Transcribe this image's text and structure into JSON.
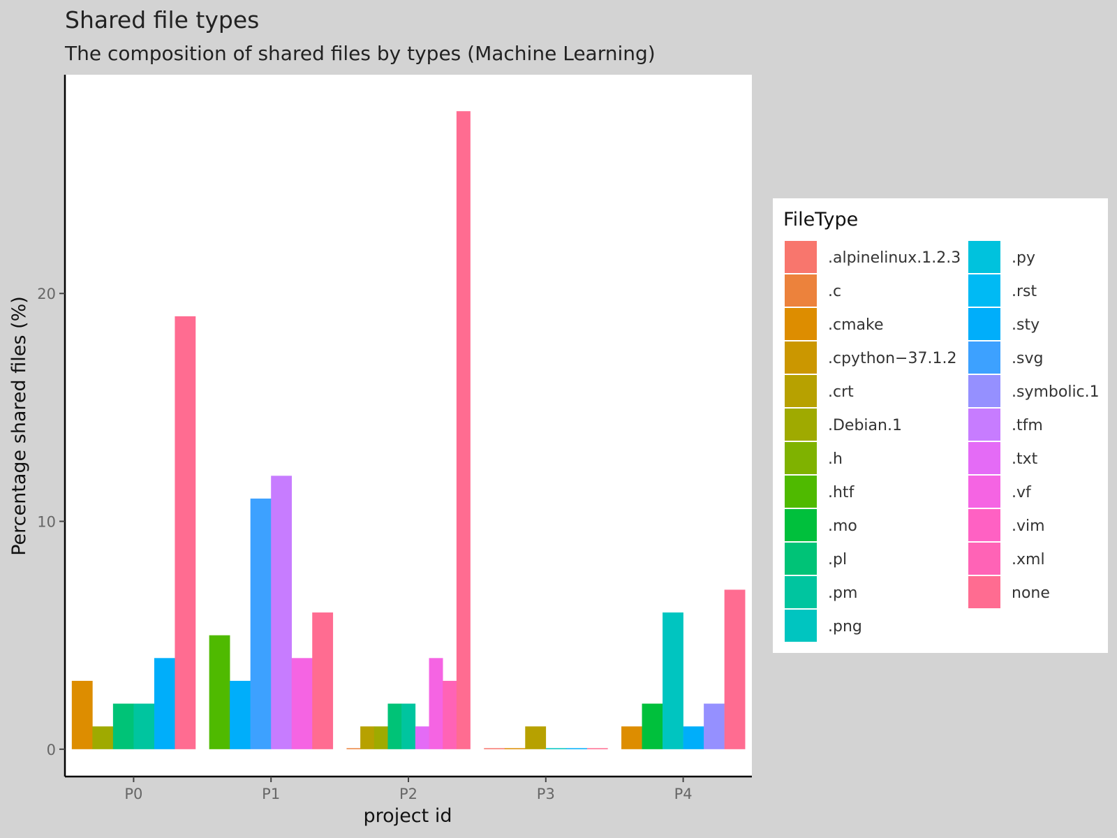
{
  "chart_data": {
    "type": "bar",
    "title": "Shared file types",
    "subtitle": "The composition of shared files by types (Machine Learning)",
    "xlabel": "project id",
    "ylabel": "Percentage shared files (%)",
    "categories": [
      "P0",
      "P1",
      "P2",
      "P3",
      "P4"
    ],
    "yticks": [
      0,
      10,
      20
    ],
    "ylim": [
      -1.2,
      29.6
    ],
    "grid": false,
    "legend": {
      "title": "FileType",
      "placement": "right",
      "columns": 2
    },
    "file_types": [
      {
        "name": ".alpinelinux.1.2.3",
        "color": "#F8766D"
      },
      {
        "name": ".c",
        "color": "#EC823C"
      },
      {
        "name": ".cmake",
        "color": "#DD8D00"
      },
      {
        "name": ".cpython−37.1.2",
        "color": "#CB9700"
      },
      {
        "name": ".crt",
        "color": "#B7A100"
      },
      {
        "name": ".Debian.1",
        "color": "#9FAA00"
      },
      {
        "name": ".h",
        "color": "#7FB200"
      },
      {
        "name": ".htf",
        "color": "#4FBA00"
      },
      {
        "name": ".mo",
        "color": "#00C03C"
      },
      {
        "name": ".pl",
        "color": "#00C377"
      },
      {
        "name": ".pm",
        "color": "#00C59F"
      },
      {
        "name": ".png",
        "color": "#00C5C0"
      },
      {
        "name": ".py",
        "color": "#00C2DD"
      },
      {
        "name": ".rst",
        "color": "#00BAF4"
      },
      {
        "name": ".sty",
        "color": "#00AEFA"
      },
      {
        "name": ".svg",
        "color": "#3DA1FF"
      },
      {
        "name": ".symbolic.1",
        "color": "#9590FF"
      },
      {
        "name": ".tfm",
        "color": "#C77CFF"
      },
      {
        "name": ".txt",
        "color": "#E46BF6"
      },
      {
        "name": ".vf",
        "color": "#F564E3"
      },
      {
        "name": ".vim",
        "color": "#FF61C3"
      },
      {
        "name": ".xml",
        "color": "#FF63B6"
      },
      {
        "name": "none",
        "color": "#FF6C91"
      }
    ],
    "groups": [
      {
        "category": "P0",
        "bars": [
          {
            "type": ".cmake",
            "value": 3
          },
          {
            "type": ".Debian.1",
            "value": 1
          },
          {
            "type": ".pl",
            "value": 2
          },
          {
            "type": ".pm",
            "value": 2
          },
          {
            "type": ".sty",
            "value": 4
          },
          {
            "type": "none",
            "value": 19
          }
        ]
      },
      {
        "category": "P1",
        "bars": [
          {
            "type": ".htf",
            "value": 5
          },
          {
            "type": ".sty",
            "value": 3
          },
          {
            "type": ".svg",
            "value": 11
          },
          {
            "type": ".tfm",
            "value": 12
          },
          {
            "type": ".vf",
            "value": 4
          },
          {
            "type": "none",
            "value": 6
          }
        ]
      },
      {
        "category": "P2",
        "bars": [
          {
            "type": ".c",
            "value": 0
          },
          {
            "type": ".crt",
            "value": 1
          },
          {
            "type": ".Debian.1",
            "value": 1
          },
          {
            "type": ".pl",
            "value": 2
          },
          {
            "type": ".pm",
            "value": 2
          },
          {
            "type": ".txt",
            "value": 1
          },
          {
            "type": ".vf",
            "value": 4
          },
          {
            "type": ".xml",
            "value": 3
          },
          {
            "type": "none",
            "value": 28
          }
        ]
      },
      {
        "category": "P3",
        "bars": [
          {
            "type": ".alpinelinux.1.2.3",
            "value": 0
          },
          {
            "type": ".cmake",
            "value": 0
          },
          {
            "type": ".crt",
            "value": 1
          },
          {
            "type": ".png",
            "value": 0
          },
          {
            "type": ".sty",
            "value": 0
          },
          {
            "type": "none",
            "value": 0
          }
        ]
      },
      {
        "category": "P4",
        "bars": [
          {
            "type": ".cmake",
            "value": 1
          },
          {
            "type": ".mo",
            "value": 2
          },
          {
            "type": ".png",
            "value": 6
          },
          {
            "type": ".sty",
            "value": 1
          },
          {
            "type": ".symbolic.1",
            "value": 2
          },
          {
            "type": "none",
            "value": 7
          }
        ]
      }
    ]
  }
}
